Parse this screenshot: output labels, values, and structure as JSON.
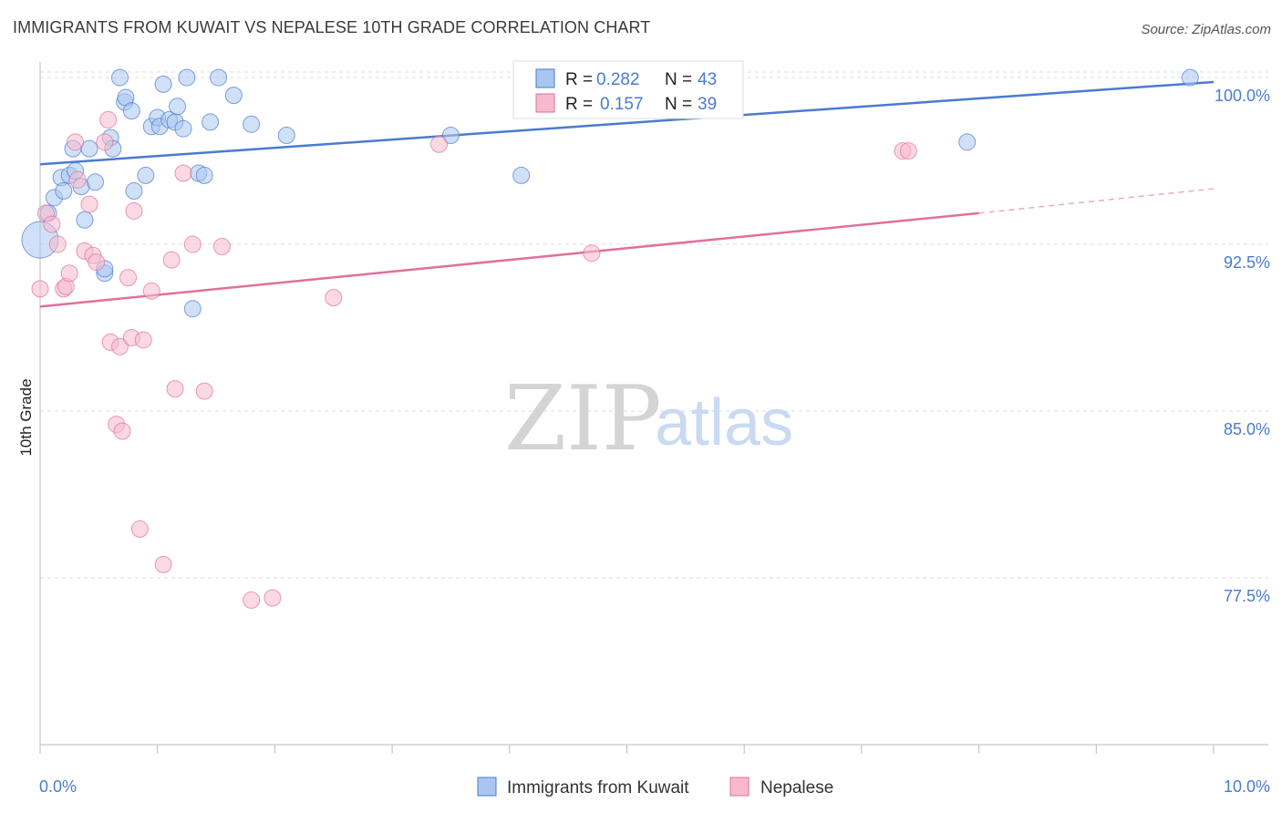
{
  "title": "IMMIGRANTS FROM KUWAIT VS NEPALESE 10TH GRADE CORRELATION CHART",
  "source": "Source: ZipAtlas.com",
  "watermark": {
    "zip": "ZIP",
    "atlas": "atlas"
  },
  "colors": {
    "blue": "#4a7bd1",
    "blue_fill": "#a9c6f0",
    "pink": "#e0709a",
    "pink_fill": "#f7b9cc",
    "grid": "#dddddd"
  },
  "chart_data": {
    "type": "scatter",
    "ylabel": "10th Grade",
    "xlim": [
      0.0,
      10.0
    ],
    "ylim": [
      70.0,
      100.7
    ],
    "x_tick_labels": [
      "0.0%",
      "10.0%"
    ],
    "y_ticks": [
      {
        "value": 100.0,
        "label": "100.0%"
      },
      {
        "value": 92.5,
        "label": "92.5%"
      },
      {
        "value": 85.0,
        "label": "85.0%"
      },
      {
        "value": 77.5,
        "label": "77.5%"
      }
    ],
    "legend_position": "top-center",
    "legend": [
      {
        "r_label": "R = ",
        "r_value": "0.282",
        "n_label": "N = ",
        "n_value": "43"
      },
      {
        "r_label": "R = ",
        "r_value": "0.157",
        "n_label": "N = ",
        "n_value": "39"
      }
    ],
    "series": [
      {
        "name": "Immigrants from Kuwait",
        "color": "#4a7bd1",
        "trend": {
          "x0": 0.0,
          "y0": 96.1,
          "x1": 10.0,
          "y1": 99.8
        },
        "points": [
          [
            0.0,
            92.7,
            "large"
          ],
          [
            0.07,
            93.9
          ],
          [
            0.12,
            94.6
          ],
          [
            0.18,
            95.5
          ],
          [
            0.2,
            94.9
          ],
          [
            0.25,
            95.6
          ],
          [
            0.28,
            96.8
          ],
          [
            0.3,
            95.8
          ],
          [
            0.35,
            95.1
          ],
          [
            0.38,
            93.6
          ],
          [
            0.42,
            96.8
          ],
          [
            0.47,
            95.3
          ],
          [
            0.55,
            91.2
          ],
          [
            0.55,
            91.4
          ],
          [
            0.6,
            97.3
          ],
          [
            0.62,
            96.8
          ],
          [
            0.68,
            100.0
          ],
          [
            0.72,
            98.9
          ],
          [
            0.73,
            99.1
          ],
          [
            0.78,
            98.5
          ],
          [
            0.8,
            94.9
          ],
          [
            0.9,
            95.6
          ],
          [
            0.95,
            97.8
          ],
          [
            1.0,
            98.2
          ],
          [
            1.02,
            97.8
          ],
          [
            1.05,
            99.7
          ],
          [
            1.1,
            98.1
          ],
          [
            1.15,
            98.0
          ],
          [
            1.17,
            98.7
          ],
          [
            1.22,
            97.7
          ],
          [
            1.25,
            100.0
          ],
          [
            1.3,
            89.6
          ],
          [
            1.35,
            95.7
          ],
          [
            1.4,
            95.6
          ],
          [
            1.45,
            98.0
          ],
          [
            1.52,
            100.0
          ],
          [
            1.65,
            99.2
          ],
          [
            1.8,
            97.9
          ],
          [
            2.1,
            97.4
          ],
          [
            3.5,
            97.4
          ],
          [
            4.1,
            95.6
          ],
          [
            7.9,
            97.1
          ],
          [
            9.8,
            100.0
          ]
        ]
      },
      {
        "name": "Nepalese",
        "color": "#e0709a",
        "trend": {
          "x0": 0.0,
          "y0": 89.7,
          "x1": 8.0,
          "y1": 93.9,
          "dash_to_x": 10.0,
          "dash_to_y": 95.0
        },
        "points": [
          [
            0.0,
            90.5
          ],
          [
            0.05,
            93.9
          ],
          [
            0.1,
            93.4
          ],
          [
            0.15,
            92.5
          ],
          [
            0.2,
            90.5
          ],
          [
            0.22,
            90.6
          ],
          [
            0.25,
            91.2
          ],
          [
            0.3,
            97.1
          ],
          [
            0.32,
            95.4
          ],
          [
            0.38,
            92.2
          ],
          [
            0.42,
            94.3
          ],
          [
            0.45,
            92.0
          ],
          [
            0.48,
            91.7
          ],
          [
            0.55,
            97.1
          ],
          [
            0.58,
            98.1
          ],
          [
            0.6,
            88.1
          ],
          [
            0.65,
            84.4
          ],
          [
            0.68,
            87.9
          ],
          [
            0.7,
            84.1
          ],
          [
            0.75,
            91.0
          ],
          [
            0.78,
            88.3
          ],
          [
            0.8,
            94.0
          ],
          [
            0.85,
            79.7
          ],
          [
            0.88,
            88.2
          ],
          [
            0.95,
            90.4
          ],
          [
            1.05,
            78.1
          ],
          [
            1.12,
            91.8
          ],
          [
            1.15,
            86.0
          ],
          [
            1.22,
            95.7
          ],
          [
            1.3,
            92.5
          ],
          [
            1.4,
            85.9
          ],
          [
            1.55,
            92.4
          ],
          [
            1.8,
            76.5
          ],
          [
            1.98,
            76.6
          ],
          [
            2.5,
            90.1
          ],
          [
            3.4,
            97.0
          ],
          [
            4.7,
            92.1
          ],
          [
            7.35,
            96.7
          ],
          [
            7.4,
            96.7
          ]
        ]
      }
    ]
  }
}
